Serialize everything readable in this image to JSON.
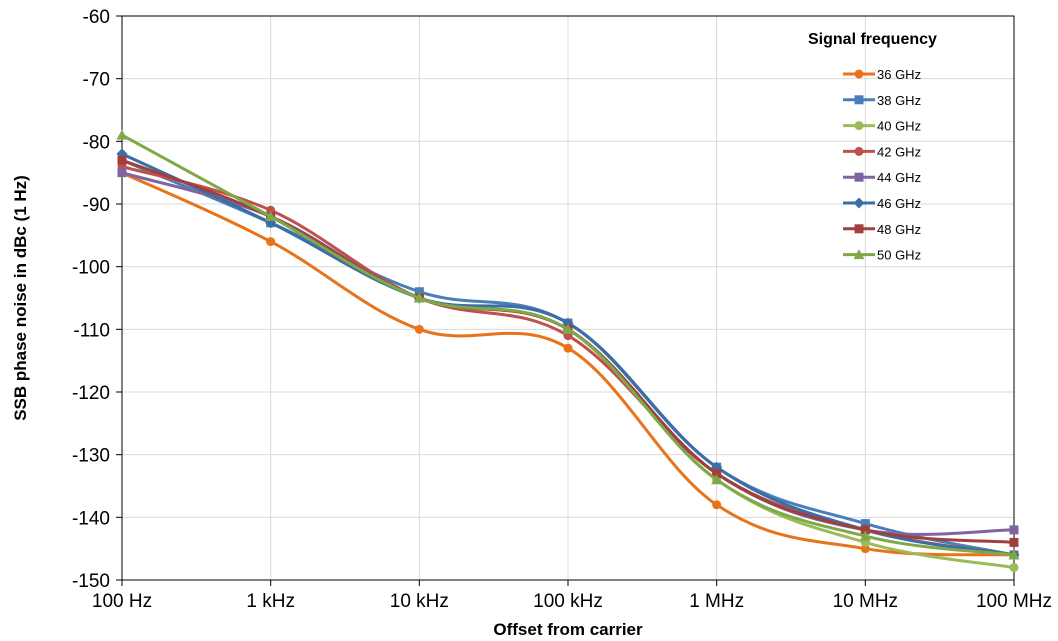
{
  "chart_data": {
    "type": "line",
    "title": "",
    "xlabel": "Offset from carrier",
    "ylabel": "SSB phase noise in dBc (1 Hz)",
    "x_scale": "log",
    "categories": [
      "100 Hz",
      "1 kHz",
      "10 kHz",
      "100 kHz",
      "1 MHz",
      "10 MHz",
      "100 MHz"
    ],
    "x_values_hz": [
      100,
      1000,
      10000,
      100000,
      1000000,
      10000000,
      100000000
    ],
    "ylim": [
      -150,
      -60
    ],
    "yticks": [
      "-60",
      "-70",
      "-80",
      "-90",
      "-100",
      "-110",
      "-120",
      "-130",
      "-140",
      "-150"
    ],
    "grid": true,
    "legend_title": "Signal frequency",
    "legend_position": "top-right",
    "series": [
      {
        "name": "36 GHz",
        "color": "#E8731A",
        "marker": "circle",
        "values": [
          -85,
          -96,
          -110,
          -113,
          -138,
          -145,
          -146
        ]
      },
      {
        "name": "38 GHz",
        "color": "#4A7EBB",
        "marker": "square",
        "values": [
          -83,
          -93,
          -104,
          -109,
          -132,
          -141,
          -146
        ]
      },
      {
        "name": "40 GHz",
        "color": "#9BBB59",
        "marker": "circle",
        "values": [
          -85,
          -92,
          -105,
          -110,
          -134,
          -144,
          -148
        ]
      },
      {
        "name": "42 GHz",
        "color": "#C0504D",
        "marker": "circle",
        "values": [
          -84,
          -91,
          -105,
          -111,
          -133,
          -142,
          -146
        ]
      },
      {
        "name": "44 GHz",
        "color": "#8064A2",
        "marker": "square",
        "values": [
          -85,
          -92,
          -105,
          -110,
          -133,
          -142,
          -142
        ]
      },
      {
        "name": "46 GHz",
        "color": "#3A6EA5",
        "marker": "diamond",
        "values": [
          -82,
          -93,
          -105,
          -109,
          -132,
          -142,
          -146
        ]
      },
      {
        "name": "48 GHz",
        "color": "#A0403D",
        "marker": "square",
        "values": [
          -83,
          -92,
          -105,
          -110,
          -133,
          -142,
          -144
        ]
      },
      {
        "name": "50 GHz",
        "color": "#7FA846",
        "marker": "triangle",
        "values": [
          -79,
          -92,
          -105,
          -110,
          -134,
          -143,
          -146
        ]
      }
    ]
  }
}
